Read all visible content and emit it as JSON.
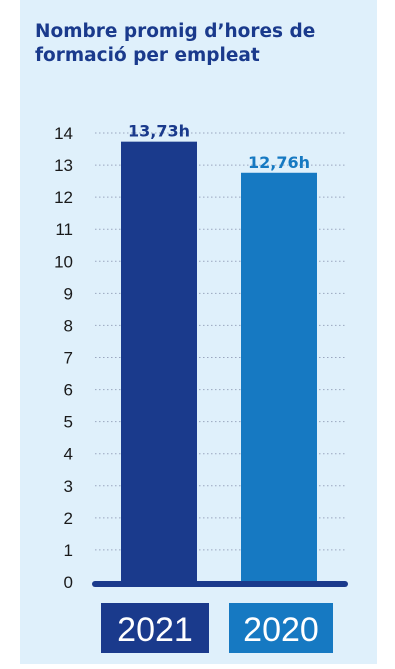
{
  "chart_data": {
    "type": "bar",
    "title": "Nombre promig d’hores de formació per empleat",
    "categories": [
      "2021",
      "2020"
    ],
    "values": [
      13.73,
      12.76
    ],
    "data_labels": [
      "13,73h",
      "12,76h"
    ],
    "ylim": [
      0,
      14
    ],
    "yticks": [
      "0",
      "1",
      "2",
      "3",
      "4",
      "5",
      "6",
      "7",
      "8",
      "9",
      "10",
      "11",
      "12",
      "13",
      "14"
    ],
    "grid": true,
    "legend": "none",
    "colors": {
      "2021": "#1a3a8c",
      "2020": "#1679c2",
      "background": "#dff0fb",
      "baseline": "#1a3a8c",
      "grid": "#9aa6bf"
    }
  }
}
